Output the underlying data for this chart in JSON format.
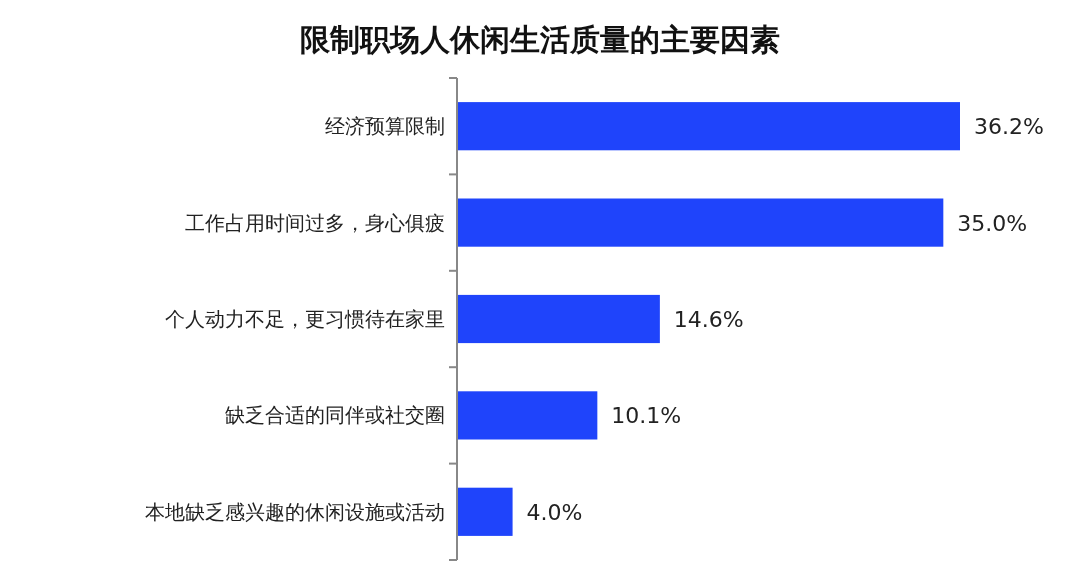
{
  "chart_data": {
    "type": "bar",
    "orientation": "horizontal",
    "title": "限制职场人休闲生活质量的主要因素",
    "categories": [
      "经济预算限制",
      "工作占用时间过多，身心俱疲",
      "个人动力不足，更习惯待在家里",
      "缺乏合适的同伴或社交圈",
      "本地缺乏感兴趣的休闲设施或活动"
    ],
    "values": [
      36.2,
      35.0,
      14.6,
      10.1,
      4.0
    ],
    "value_labels": [
      "36.2%",
      "35.0%",
      "14.6%",
      "10.1%",
      "4.0%"
    ],
    "color": "#1f44fb"
  }
}
